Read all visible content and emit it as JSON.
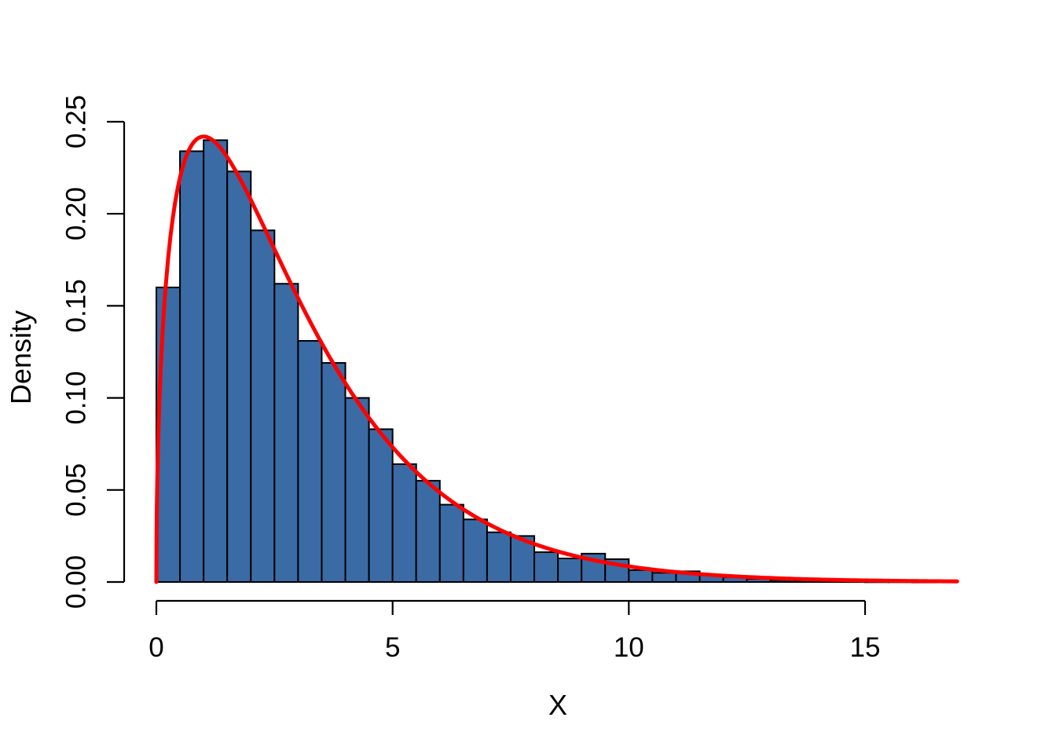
{
  "chart_data": {
    "type": "bar",
    "subtype": "histogram-with-density-curve",
    "title": "",
    "xlabel": "X",
    "ylabel": "Density",
    "grid": false,
    "legend": "none",
    "x_axis": {
      "tick_values": [
        0,
        5,
        10,
        15
      ],
      "tick_labels": [
        "0",
        "5",
        "10",
        "15"
      ],
      "data_range": [
        0,
        17
      ]
    },
    "y_axis": {
      "tick_values": [
        0.0,
        0.05,
        0.1,
        0.15,
        0.2,
        0.25
      ],
      "tick_labels": [
        "0.00",
        "0.05",
        "0.10",
        "0.15",
        "0.20",
        "0.25"
      ],
      "range": [
        0,
        0.25
      ]
    },
    "bin_width": 0.5,
    "bins": [
      {
        "start": 0.0,
        "density": 0.16
      },
      {
        "start": 0.5,
        "density": 0.234
      },
      {
        "start": 1.0,
        "density": 0.24
      },
      {
        "start": 1.5,
        "density": 0.223
      },
      {
        "start": 2.0,
        "density": 0.191
      },
      {
        "start": 2.5,
        "density": 0.162
      },
      {
        "start": 3.0,
        "density": 0.131
      },
      {
        "start": 3.5,
        "density": 0.119
      },
      {
        "start": 4.0,
        "density": 0.1
      },
      {
        "start": 4.5,
        "density": 0.083
      },
      {
        "start": 5.0,
        "density": 0.064
      },
      {
        "start": 5.5,
        "density": 0.055
      },
      {
        "start": 6.0,
        "density": 0.042
      },
      {
        "start": 6.5,
        "density": 0.034
      },
      {
        "start": 7.0,
        "density": 0.027
      },
      {
        "start": 7.5,
        "density": 0.025
      },
      {
        "start": 8.0,
        "density": 0.0162
      },
      {
        "start": 8.5,
        "density": 0.0128
      },
      {
        "start": 9.0,
        "density": 0.0154
      },
      {
        "start": 9.5,
        "density": 0.0124
      },
      {
        "start": 10.0,
        "density": 0.0065
      },
      {
        "start": 10.5,
        "density": 0.005
      },
      {
        "start": 11.0,
        "density": 0.0058
      },
      {
        "start": 11.5,
        "density": 0.0038
      },
      {
        "start": 12.0,
        "density": 0.0026
      },
      {
        "start": 12.5,
        "density": 0.0017
      },
      {
        "start": 13.0,
        "density": 0.001
      },
      {
        "start": 13.5,
        "density": 0.0006
      },
      {
        "start": 14.0,
        "density": 0.0004
      },
      {
        "start": 14.5,
        "density": 0.0003
      },
      {
        "start": 15.0,
        "density": 0.0002
      },
      {
        "start": 15.5,
        "density": 0.0002
      },
      {
        "start": 16.0,
        "density": 0.0001
      }
    ],
    "curve": {
      "distribution": "chi-squared",
      "df": 3,
      "x_min": 0,
      "x_max": 17,
      "peak": {
        "x": 1.0,
        "density": 0.242
      }
    },
    "colors": {
      "bar_fill": "#3A6BA5",
      "bar_border": "#000000",
      "curve": "#FF0000",
      "axis": "#000000",
      "background": "#FFFFFF"
    }
  }
}
